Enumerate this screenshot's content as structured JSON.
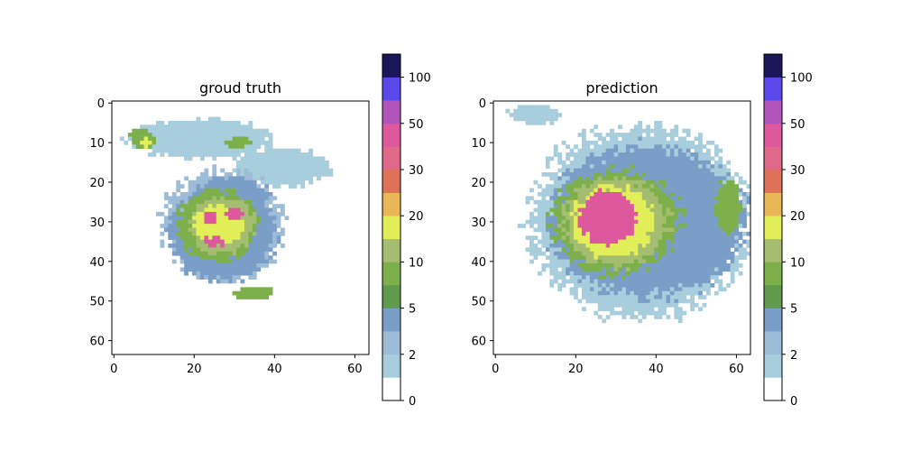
{
  "figure": {
    "background": "#ffffff"
  },
  "chart_data": [
    {
      "type": "heatmap",
      "title": "groud truth",
      "grid_size": [
        64,
        64
      ],
      "xlim": [
        0,
        63
      ],
      "ylim": [
        63,
        0
      ],
      "xticks": [
        0,
        20,
        40,
        60
      ],
      "yticks": [
        0,
        10,
        20,
        30,
        40,
        50,
        60
      ],
      "grid": false,
      "cells": {
        "note": "approximate rain-intensity regions in data units (column x, row y)",
        "regions": [
          {
            "shape": "ellipse",
            "cx": 27,
            "cy": 31,
            "rx": 15,
            "ry": 14,
            "value": 2
          },
          {
            "shape": "ellipse",
            "cx": 21,
            "cy": 9,
            "rx": 18,
            "ry": 5,
            "value": 1.5
          },
          {
            "shape": "ellipse",
            "cx": 42,
            "cy": 16,
            "rx": 12,
            "ry": 5,
            "value": 1.5
          },
          {
            "shape": "ellipse",
            "cx": 27,
            "cy": 33,
            "rx": 13,
            "ry": 12,
            "value": 4
          },
          {
            "shape": "ellipse",
            "cx": 29,
            "cy": 24,
            "rx": 10,
            "ry": 5,
            "value": 4
          },
          {
            "shape": "ellipse",
            "cx": 26,
            "cy": 31,
            "rx": 10,
            "ry": 9,
            "value": 7
          },
          {
            "shape": "ellipse",
            "cx": 35,
            "cy": 48,
            "rx": 5,
            "ry": 2,
            "value": 7
          },
          {
            "shape": "ellipse",
            "cx": 31,
            "cy": 10,
            "rx": 3,
            "ry": 1.5,
            "value": 8
          },
          {
            "shape": "ellipse",
            "cx": 7,
            "cy": 9,
            "rx": 3,
            "ry": 2.5,
            "value": 7
          },
          {
            "shape": "ellipse",
            "cx": 27,
            "cy": 31,
            "rx": 8,
            "ry": 7,
            "value": 12
          },
          {
            "shape": "ellipse",
            "cx": 26,
            "cy": 31,
            "rx": 6,
            "ry": 5,
            "value": 16
          },
          {
            "shape": "ellipse",
            "cx": 8,
            "cy": 10,
            "rx": 1.5,
            "ry": 1,
            "value": 16
          },
          {
            "shape": "ellipse",
            "cx": 25,
            "cy": 35,
            "rx": 3,
            "ry": 1.2,
            "value": 40
          },
          {
            "shape": "ellipse",
            "cx": 30,
            "cy": 28,
            "rx": 2,
            "ry": 2,
            "value": 40
          },
          {
            "shape": "ellipse",
            "cx": 24,
            "cy": 29,
            "rx": 2,
            "ry": 1.5,
            "value": 40
          }
        ]
      },
      "colorbar": {
        "ticks": [
          0,
          2,
          5,
          10,
          20,
          30,
          50,
          100
        ],
        "tick_labels": [
          "0",
          "2",
          "5",
          "10",
          "20",
          "30",
          "50",
          "100"
        ]
      }
    },
    {
      "type": "heatmap",
      "title": "prediction",
      "grid_size": [
        64,
        64
      ],
      "xlim": [
        0,
        63
      ],
      "ylim": [
        63,
        0
      ],
      "xticks": [
        0,
        20,
        40,
        60
      ],
      "yticks": [
        0,
        10,
        20,
        30,
        40,
        50,
        60
      ],
      "grid": false,
      "cells": {
        "note": "approximate rain-intensity regions in data units (column x, row y)",
        "regions": [
          {
            "shape": "ellipse",
            "cx": 36,
            "cy": 30,
            "rx": 27,
            "ry": 24,
            "value": 1.5
          },
          {
            "shape": "ellipse",
            "cx": 10,
            "cy": 3,
            "rx": 7,
            "ry": 2.5,
            "value": 1.5
          },
          {
            "shape": "ellipse",
            "cx": 38,
            "cy": 30,
            "rx": 24,
            "ry": 19,
            "value": 3
          },
          {
            "shape": "ellipse",
            "cx": 37,
            "cy": 30,
            "rx": 22,
            "ry": 16,
            "value": 4
          },
          {
            "shape": "ellipse",
            "cx": 30,
            "cy": 30,
            "rx": 16,
            "ry": 13,
            "value": 7
          },
          {
            "shape": "ellipse",
            "cx": 58,
            "cy": 26,
            "rx": 3,
            "ry": 7,
            "value": 7
          },
          {
            "shape": "ellipse",
            "cx": 30,
            "cy": 30,
            "rx": 13,
            "ry": 11,
            "value": 12
          },
          {
            "shape": "ellipse",
            "cx": 29,
            "cy": 30,
            "rx": 10,
            "ry": 9,
            "value": 16
          },
          {
            "shape": "ellipse",
            "cx": 28,
            "cy": 29,
            "rx": 7,
            "ry": 7,
            "value": 40
          },
          {
            "shape": "ellipse",
            "cx": 31,
            "cy": 30,
            "rx": 3,
            "ry": 3,
            "value": 16
          }
        ]
      },
      "colorbar": {
        "ticks": [
          0,
          2,
          5,
          10,
          20,
          30,
          50,
          100
        ],
        "tick_labels": [
          "0",
          "2",
          "5",
          "10",
          "20",
          "30",
          "50",
          "100"
        ]
      }
    }
  ],
  "colormap": {
    "boundaries": [
      0,
      1,
      2,
      3,
      5,
      7,
      10,
      15,
      20,
      25,
      30,
      40,
      50,
      70,
      100,
      150
    ],
    "colors": [
      "#ffffff",
      "#a8cddc",
      "#9cbcd8",
      "#7b9ec8",
      "#609a4d",
      "#7db04a",
      "#a5bd71",
      "#e2ef58",
      "#e9b658",
      "#df7159",
      "#e06889",
      "#dd589d",
      "#b155bd",
      "#5a48ea",
      "#1a1659"
    ]
  }
}
